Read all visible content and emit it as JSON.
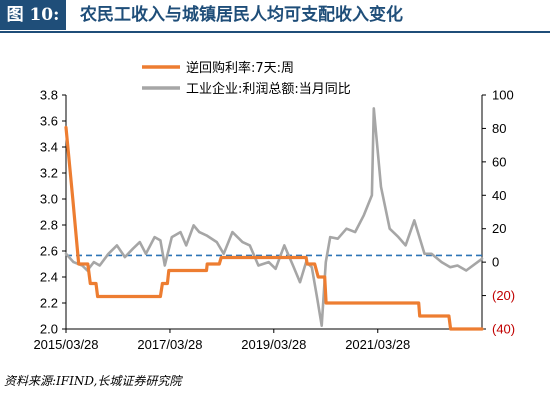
{
  "header": {
    "badge": "图 10:",
    "title": "农民工收入与城镇居民人均可支配收入变化"
  },
  "source": "资料来源:IFIND,长城证券研究院",
  "chart_data": {
    "type": "line",
    "x_ticks": [
      "2015/03/28",
      "2017/03/28",
      "2019/03/28",
      "2021/03/28"
    ],
    "x_range": [
      "2015-03-28",
      "2023-03-31"
    ],
    "y_left": {
      "range": [
        2.0,
        3.8
      ],
      "ticks": [
        2.0,
        2.2,
        2.4,
        2.6,
        2.8,
        3.0,
        3.2,
        3.4,
        3.6,
        3.8
      ],
      "labels": [
        "2.0",
        "2.2",
        "2.4",
        "2.6",
        "2.8",
        "3.0",
        "3.2",
        "3.4",
        "3.6",
        "3.8"
      ]
    },
    "y_right": {
      "range": [
        -40,
        100
      ],
      "ticks": [
        -40,
        -20,
        0,
        20,
        40,
        60,
        80,
        100
      ],
      "labels": [
        "(40)",
        "(20)",
        "0",
        "20",
        "40",
        "60",
        "80",
        "100"
      ]
    },
    "reference_line": {
      "axis": "right",
      "value": 4,
      "style": "dashed",
      "color": "#2e75b6"
    },
    "colors": {
      "orange": "#ed7d31",
      "gray": "#a6a6a6",
      "blue": "#2e75b6",
      "neg": "#c00000"
    },
    "series": [
      {
        "name": "逆回购利率:7天:周",
        "axis": "left",
        "color": "#ed7d31",
        "x": [
          "2015-03-28",
          "2015-05-15",
          "2015-06-25",
          "2015-07-10",
          "2015-08-28",
          "2015-09-15",
          "2015-10-25",
          "2015-11-05",
          "2016-02-15",
          "2016-06-30",
          "2016-12-30",
          "2017-01-20",
          "2017-02-03",
          "2017-03-10",
          "2017-03-20",
          "2017-12-10",
          "2017-12-15",
          "2018-03-10",
          "2018-03-23",
          "2019-11-10",
          "2019-11-18",
          "2020-01-10",
          "2020-02-03",
          "2020-03-20",
          "2020-03-30",
          "2022-01-10",
          "2022-01-17",
          "2022-08-10",
          "2022-08-22",
          "2023-03-31"
        ],
        "y": [
          3.55,
          3.0,
          2.5,
          2.5,
          2.5,
          2.35,
          2.35,
          2.25,
          2.25,
          2.25,
          2.25,
          2.25,
          2.35,
          2.35,
          2.45,
          2.45,
          2.5,
          2.5,
          2.55,
          2.55,
          2.5,
          2.5,
          2.4,
          2.4,
          2.2,
          2.2,
          2.1,
          2.1,
          2.0,
          2.0
        ]
      },
      {
        "name": "工业企业:利润总额:当月同比",
        "axis": "right",
        "color": "#a6a6a6",
        "x": [
          "2015-03-28",
          "2015-05-20",
          "2015-07-20",
          "2015-08-25",
          "2015-10-10",
          "2015-11-20",
          "2016-01-20",
          "2016-03-20",
          "2016-05-15",
          "2016-07-10",
          "2016-08-28",
          "2016-10-10",
          "2016-12-10",
          "2017-01-20",
          "2017-02-20",
          "2017-04-10",
          "2017-06-10",
          "2017-07-20",
          "2017-09-10",
          "2017-10-20",
          "2017-12-10",
          "2018-02-20",
          "2018-04-10",
          "2018-06-10",
          "2018-08-20",
          "2018-10-10",
          "2018-12-10",
          "2019-02-20",
          "2019-04-10",
          "2019-06-10",
          "2019-08-10",
          "2019-09-28",
          "2019-11-10",
          "2019-12-20",
          "2020-01-28",
          "2020-02-28",
          "2020-03-28",
          "2020-04-28",
          "2020-06-20",
          "2020-08-20",
          "2020-10-20",
          "2020-12-20",
          "2021-02-15",
          "2021-02-28",
          "2021-04-20",
          "2021-06-20",
          "2021-08-20",
          "2021-10-10",
          "2021-12-10",
          "2022-02-20",
          "2022-04-10",
          "2022-06-20",
          "2022-08-20",
          "2022-10-10",
          "2022-12-10",
          "2023-03-31"
        ],
        "y": [
          5,
          0,
          -2,
          -5,
          0,
          -2,
          5,
          10,
          3,
          8,
          12,
          5,
          15,
          13,
          -2,
          15,
          18,
          10,
          22,
          18,
          16,
          12,
          5,
          18,
          12,
          10,
          -2,
          0,
          -4,
          10,
          -2,
          -12,
          0,
          -3,
          -22,
          -38,
          0,
          15,
          14,
          20,
          18,
          28,
          40,
          92,
          45,
          20,
          15,
          10,
          25,
          5,
          5,
          0,
          -3,
          -2,
          -5,
          2
        ]
      }
    ]
  }
}
